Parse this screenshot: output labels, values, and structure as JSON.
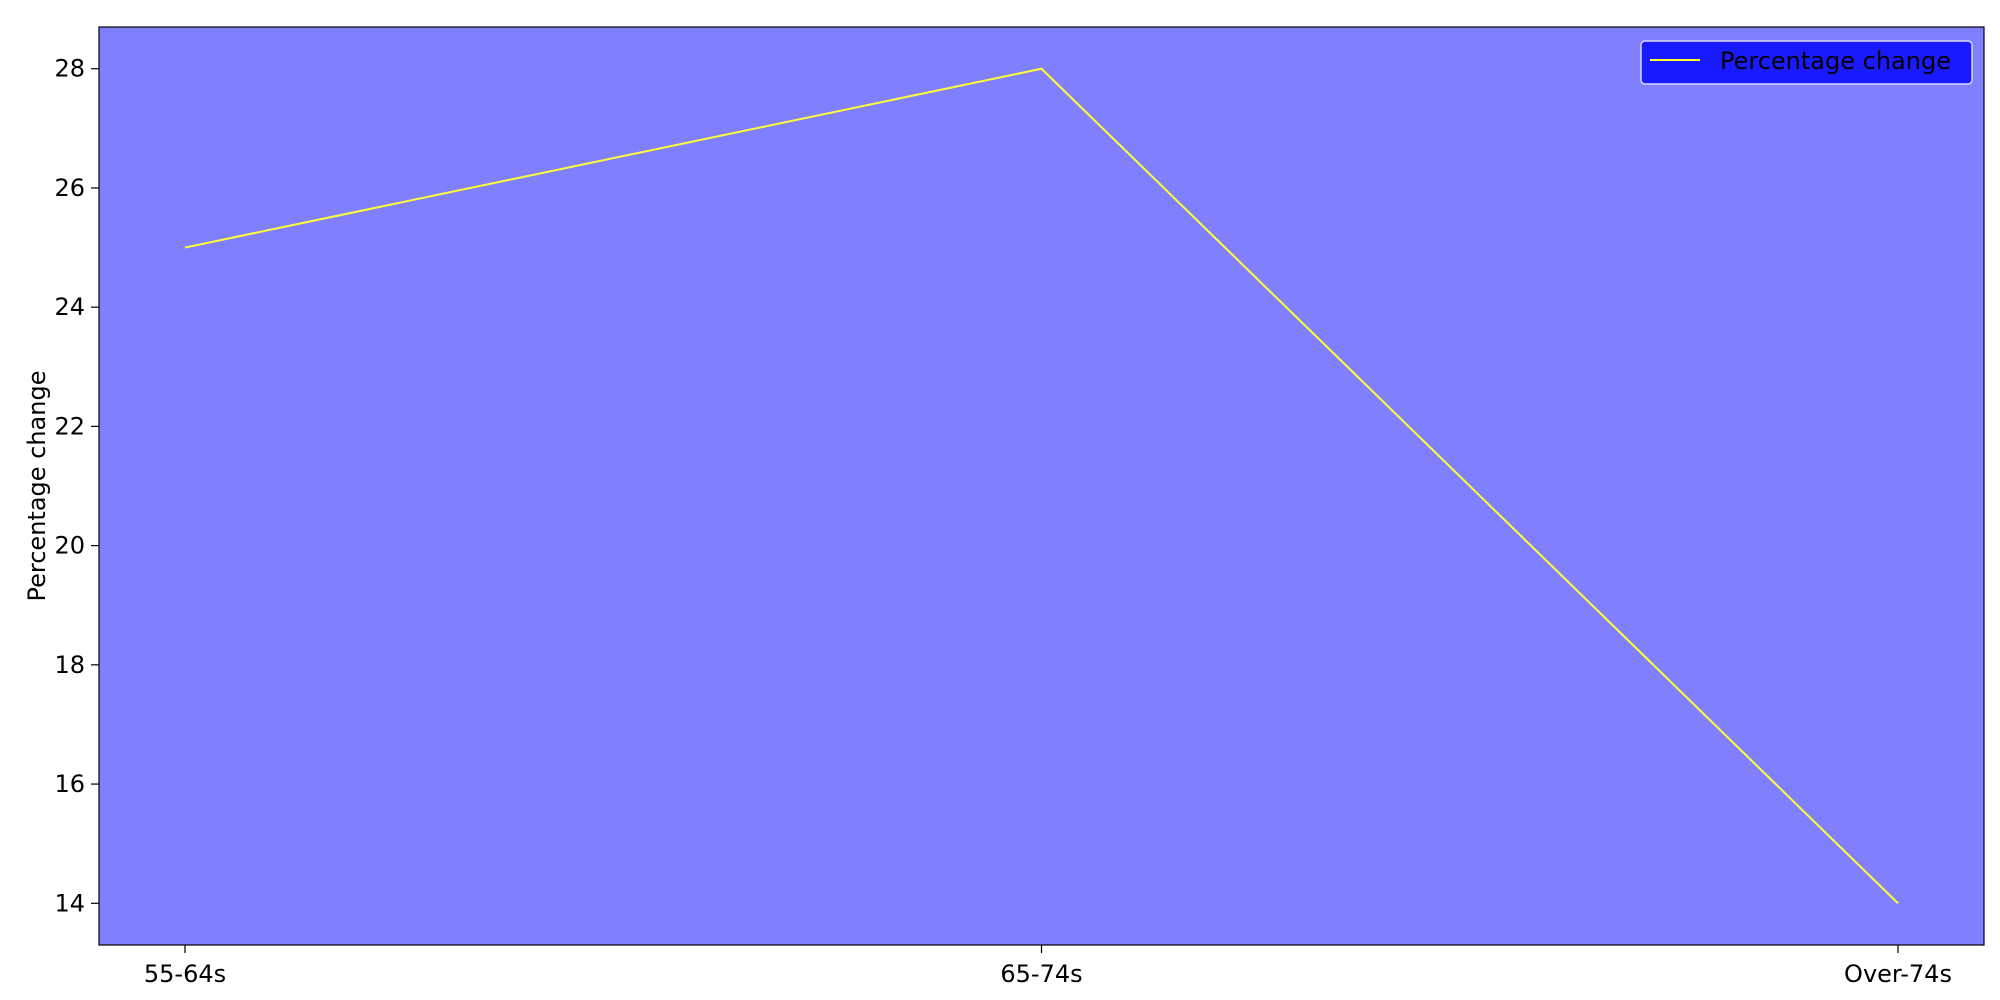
{
  "chart_data": {
    "type": "line",
    "categories": [
      "55-64s",
      "65-74s",
      "Over-74s"
    ],
    "series": [
      {
        "name": "Percentage change",
        "values": [
          25,
          28,
          14
        ],
        "color": "#ffff33"
      }
    ],
    "title": "",
    "xlabel": "",
    "ylabel": "Percentage change",
    "ylim": [
      13.3,
      28.7
    ],
    "yticks": [
      14,
      16,
      18,
      20,
      22,
      24,
      26,
      28
    ],
    "grid": false,
    "legend": {
      "position": "top-right",
      "background": "#1a1aff"
    },
    "plot_background": "#8080ff"
  }
}
